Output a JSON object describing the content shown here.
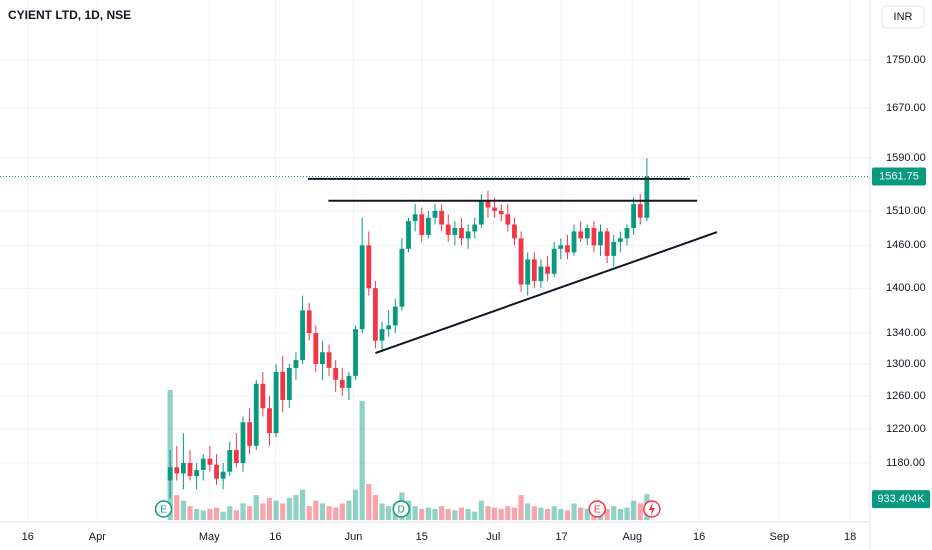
{
  "chart_data": {
    "type": "candlestick",
    "title": "CYIENT LTD, 1D, NSE",
    "currency": "INR",
    "log_scale": true,
    "grid": true,
    "up_color": "#089981",
    "down_color": "#f23645",
    "ylim": [
      1116,
      1856
    ],
    "yticks": [
      {
        "value": 1750,
        "label": "1750.00"
      },
      {
        "value": 1670,
        "label": "1670.00"
      },
      {
        "value": 1590,
        "label": "1590.00"
      },
      {
        "value": 1510,
        "label": "1510.00"
      },
      {
        "value": 1460,
        "label": "1460.00"
      },
      {
        "value": 1400,
        "label": "1400.00"
      },
      {
        "value": 1340,
        "label": "1340.00"
      },
      {
        "value": 1300,
        "label": "1300.00"
      },
      {
        "value": 1260,
        "label": "1260.00"
      },
      {
        "value": 1220,
        "label": "1220.00"
      },
      {
        "value": 1180,
        "label": "1180.00"
      }
    ],
    "xlim": [
      -25.7,
      105.7
    ],
    "xticks": [
      {
        "value": -21.5,
        "label": "16"
      },
      {
        "value": -11,
        "label": "Apr"
      },
      {
        "value": 5.9,
        "label": "May"
      },
      {
        "value": 15.9,
        "label": "16"
      },
      {
        "value": 27.7,
        "label": "Jun"
      },
      {
        "value": 38,
        "label": "15"
      },
      {
        "value": 48.8,
        "label": "Jul"
      },
      {
        "value": 59.1,
        "label": "17"
      },
      {
        "value": 69.8,
        "label": "Aug"
      },
      {
        "value": 79.9,
        "label": "16"
      },
      {
        "value": 92,
        "label": "Sep"
      },
      {
        "value": 102.7,
        "label": "18"
      }
    ],
    "open": [
      1160,
      1175,
      1168,
      1180,
      1165,
      1172,
      1185,
      1178,
      1162,
      1170,
      1195,
      1180,
      1228,
      1200,
      1275,
      1245,
      1215,
      1290,
      1255,
      1295,
      1305,
      1370,
      1340,
      1300,
      1315,
      1295,
      1280,
      1270,
      1285,
      1345,
      1460,
      1400,
      1330,
      1345,
      1350,
      1375,
      1455,
      1495,
      1505,
      1475,
      1500,
      1510,
      1490,
      1475,
      1485,
      1470,
      1480,
      1490,
      1525,
      1515,
      1510,
      1505,
      1490,
      1470,
      1405,
      1440,
      1410,
      1430,
      1420,
      1455,
      1460,
      1450,
      1480,
      1470,
      1485,
      1460,
      1480,
      1445,
      1465,
      1470,
      1485,
      1520,
      1500
    ],
    "high": [
      1195,
      1200,
      1215,
      1195,
      1180,
      1190,
      1200,
      1190,
      1180,
      1205,
      1215,
      1235,
      1245,
      1280,
      1290,
      1260,
      1300,
      1310,
      1300,
      1315,
      1390,
      1380,
      1350,
      1330,
      1325,
      1305,
      1295,
      1290,
      1350,
      1500,
      1480,
      1410,
      1355,
      1370,
      1385,
      1470,
      1500,
      1520,
      1515,
      1510,
      1520,
      1520,
      1505,
      1495,
      1500,
      1490,
      1500,
      1535,
      1540,
      1530,
      1520,
      1520,
      1500,
      1480,
      1450,
      1450,
      1440,
      1445,
      1465,
      1470,
      1475,
      1490,
      1495,
      1490,
      1495,
      1490,
      1485,
      1475,
      1480,
      1490,
      1530,
      1535,
      1590
    ],
    "low": [
      1140,
      1160,
      1150,
      1160,
      1150,
      1160,
      1170,
      1155,
      1150,
      1165,
      1175,
      1170,
      1190,
      1195,
      1235,
      1200,
      1210,
      1240,
      1245,
      1280,
      1300,
      1330,
      1290,
      1280,
      1285,
      1265,
      1260,
      1255,
      1280,
      1340,
      1390,
      1320,
      1315,
      1335,
      1340,
      1370,
      1450,
      1480,
      1465,
      1470,
      1490,
      1480,
      1465,
      1460,
      1460,
      1455,
      1470,
      1485,
      1500,
      1500,
      1495,
      1480,
      1460,
      1395,
      1390,
      1400,
      1400,
      1410,
      1415,
      1440,
      1440,
      1445,
      1465,
      1460,
      1450,
      1445,
      1435,
      1430,
      1450,
      1460,
      1475,
      1490,
      1495
    ],
    "close": [
      1175,
      1168,
      1180,
      1165,
      1172,
      1185,
      1178,
      1162,
      1170,
      1195,
      1180,
      1228,
      1200,
      1275,
      1245,
      1215,
      1290,
      1255,
      1295,
      1305,
      1370,
      1340,
      1300,
      1315,
      1295,
      1280,
      1270,
      1285,
      1345,
      1460,
      1400,
      1330,
      1345,
      1350,
      1375,
      1455,
      1495,
      1505,
      1475,
      1500,
      1510,
      1490,
      1475,
      1485,
      1470,
      1480,
      1490,
      1525,
      1515,
      1510,
      1505,
      1490,
      1470,
      1405,
      1440,
      1410,
      1430,
      1420,
      1455,
      1460,
      1450,
      1480,
      1470,
      1485,
      1460,
      1480,
      1445,
      1465,
      1470,
      1485,
      1520,
      1500,
      1561.75
    ],
    "volume": [
      4700000,
      900000,
      700000,
      500000,
      400000,
      350000,
      400000,
      450000,
      300000,
      500000,
      350000,
      600000,
      500000,
      900000,
      600000,
      800000,
      700000,
      600000,
      800000,
      900000,
      1100000,
      500000,
      700000,
      600000,
      500000,
      450000,
      600000,
      700000,
      1100000,
      4300000,
      1300000,
      900000,
      600000,
      500000,
      600000,
      1000000,
      700000,
      500000,
      400000,
      450000,
      400000,
      500000,
      400000,
      350000,
      450000,
      400000,
      300000,
      700000,
      500000,
      450000,
      400000,
      500000,
      450000,
      900000,
      600000,
      500000,
      450000,
      400000,
      500000,
      400000,
      350000,
      600000,
      450000,
      400000,
      500000,
      450000,
      400000,
      500000,
      400000,
      450000,
      700000,
      600000,
      933404
    ],
    "last_price": 1561.75,
    "last_volume": {
      "value": 933404,
      "label": "933.404K"
    },
    "trendlines": [
      {
        "x": [
          20.8,
          78.5
        ],
        "y": [
          1558,
          1558
        ]
      },
      {
        "x": [
          23.9,
          79.6
        ],
        "y": [
          1525,
          1525
        ]
      },
      {
        "x": [
          31,
          82.6
        ],
        "y": [
          1314,
          1479
        ]
      }
    ],
    "events": [
      {
        "label": "E",
        "x": -1,
        "color": "#089981"
      },
      {
        "label": "D",
        "x": 34.9,
        "color": "#089981"
      },
      {
        "label": "E",
        "x": 64.5,
        "color": "#f23645"
      }
    ]
  }
}
